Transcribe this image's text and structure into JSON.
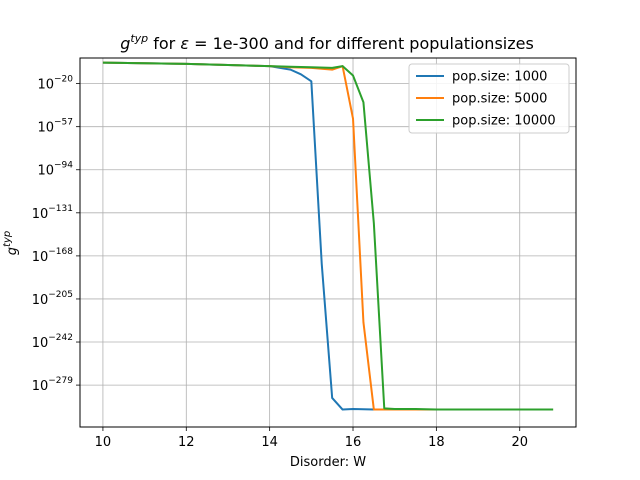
{
  "chart_data": {
    "type": "line",
    "title": "g^{typ} for ε = 1e-300 and for different populationsizes",
    "title_parts": {
      "g": "g",
      "typ": "typ",
      "for": " for ",
      "eps": "ε",
      "eq": " = 1e-300 and for different populationsizes"
    },
    "xlabel": "Disorder: W",
    "ylabel": "g^{typ}",
    "ylabel_parts": {
      "g": "g",
      "typ": "typ"
    },
    "xlim": [
      9.45,
      21.35
    ],
    "ylim_log10": [
      -315,
      2
    ],
    "y_scale": "log",
    "x_ticks": [
      10,
      12,
      14,
      16,
      18,
      20
    ],
    "x_tick_labels": [
      "10",
      "12",
      "14",
      "16",
      "18",
      "20"
    ],
    "y_ticks_log10": [
      -20,
      -57,
      -94,
      -131,
      -168,
      -205,
      -242,
      -279
    ],
    "y_tick_labels": [
      {
        "base": "10",
        "exp": "−20"
      },
      {
        "base": "10",
        "exp": "−57"
      },
      {
        "base": "10",
        "exp": "−94"
      },
      {
        "base": "10",
        "exp": "−131"
      },
      {
        "base": "10",
        "exp": "−168"
      },
      {
        "base": "10",
        "exp": "−205"
      },
      {
        "base": "10",
        "exp": "−242"
      },
      {
        "base": "10",
        "exp": "−279"
      }
    ],
    "grid": true,
    "legend_position": "top-right",
    "series": [
      {
        "name": "pop.size: 1000",
        "color": "#1f77b4",
        "x": [
          10,
          11,
          12,
          13,
          14,
          14.5,
          14.75,
          15,
          15.25,
          15.5,
          15.75,
          16,
          16.5,
          17,
          17.5,
          18,
          19,
          20,
          20.8
        ],
        "log10_y": [
          -2,
          -2.5,
          -3,
          -4,
          -5,
          -8,
          -12,
          -18,
          -175,
          -290,
          -300,
          -299.5,
          -300,
          -300,
          -300,
          -300,
          -300,
          -300,
          -300
        ]
      },
      {
        "name": "pop.size: 5000",
        "color": "#ff7f0e",
        "x": [
          10,
          11,
          12,
          13,
          14,
          14.5,
          15,
          15.5,
          15.75,
          16,
          16.25,
          16.5,
          17,
          17.5,
          18,
          19,
          20,
          20.8
        ],
        "log10_y": [
          -2,
          -2.5,
          -3,
          -4,
          -5,
          -6,
          -6.5,
          -8,
          -5,
          -50,
          -225,
          -300,
          -300,
          -300,
          -300,
          -300,
          -300,
          -300
        ]
      },
      {
        "name": "pop.size: 10000",
        "color": "#2ca02c",
        "x": [
          10,
          11,
          12,
          13,
          14,
          14.5,
          15,
          15.5,
          15.75,
          16,
          16.25,
          16.5,
          16.75,
          17,
          17.5,
          18,
          19,
          20,
          20.8
        ],
        "log10_y": [
          -2,
          -2.5,
          -3,
          -4,
          -5,
          -5.5,
          -6,
          -6.5,
          -5,
          -13,
          -36,
          -140,
          -299,
          -299.5,
          -299.5,
          -300,
          -300,
          -300,
          -300
        ]
      }
    ]
  }
}
